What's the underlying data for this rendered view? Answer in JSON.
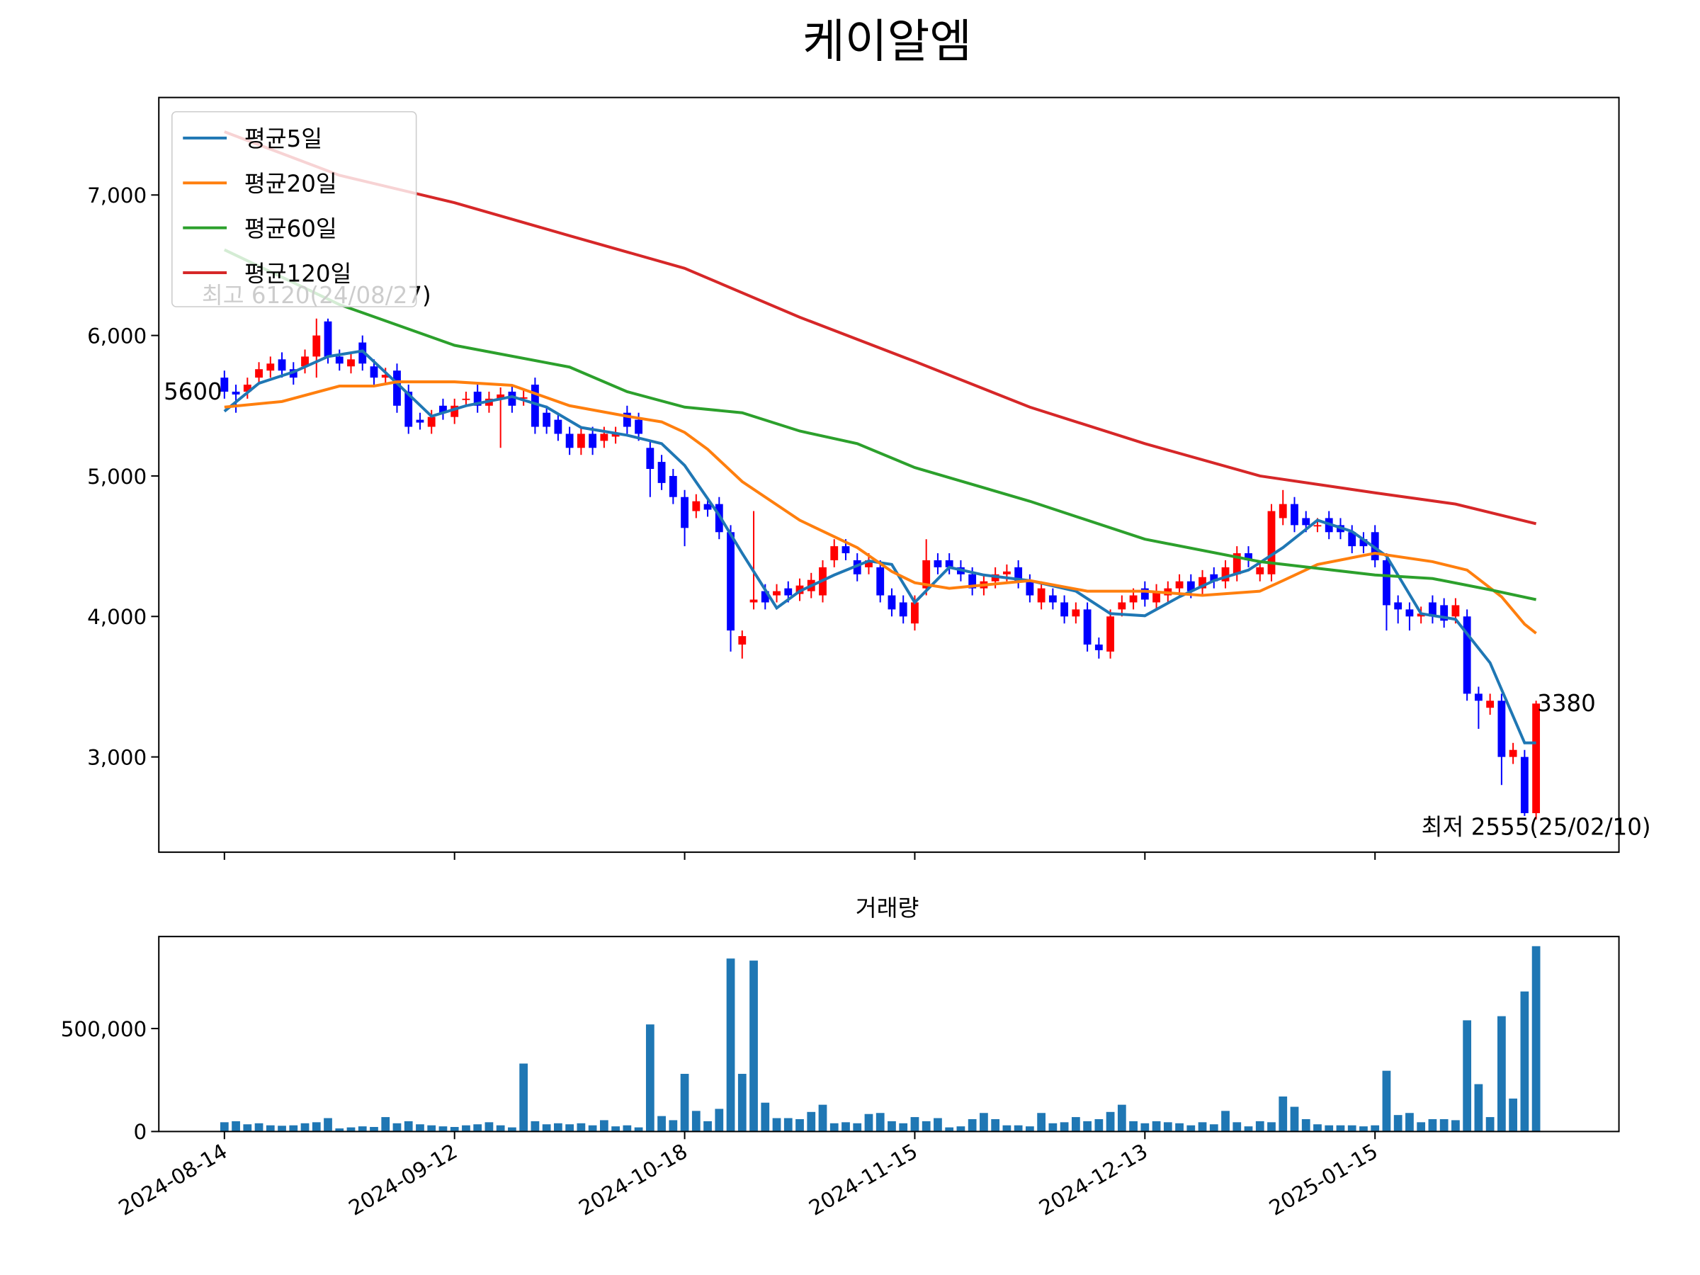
{
  "chart_data": {
    "type": "candlestick",
    "title": "케이알엠",
    "volume_title": "거래량",
    "up_color": "#ff0000",
    "down_color": "#0000ff",
    "volume_color": "#1f77b4",
    "xlim": [
      -5.7,
      121.2
    ],
    "xticks": [
      {
        "value": 0,
        "label": "2024-08-14"
      },
      {
        "value": 20,
        "label": "2024-09-12"
      },
      {
        "value": 40,
        "label": "2024-10-18"
      },
      {
        "value": 60,
        "label": "2024-11-15"
      },
      {
        "value": 80,
        "label": "2024-12-13"
      },
      {
        "value": 100,
        "label": "2025-01-15"
      }
    ],
    "ylim": [
      2322,
      7694
    ],
    "yticks": [
      {
        "value": 3000,
        "label": "3,000"
      },
      {
        "value": 4000,
        "label": "4,000"
      },
      {
        "value": 5000,
        "label": "5,000"
      },
      {
        "value": 6000,
        "label": "6,000"
      },
      {
        "value": 7000,
        "label": "7,000"
      }
    ],
    "volume_ylim": [
      0,
      946800
    ],
    "volume_yticks": [
      0,
      {
        "value": 500000,
        "label": "500,000"
      }
    ],
    "legend": "upper left",
    "candles": {
      "open": [
        5700,
        5600,
        5600,
        5700,
        5750,
        5830,
        5760,
        5780,
        5850,
        6100,
        5850,
        5780,
        5950,
        5780,
        5700,
        5750,
        5600,
        5400,
        5350,
        5500,
        5420,
        5550,
        5600,
        5500,
        5550,
        5600,
        5550,
        5650,
        5450,
        5400,
        5300,
        5200,
        5300,
        5250,
        5280,
        5450,
        5400,
        5200,
        5100,
        5000,
        4850,
        4750,
        4800,
        4800,
        4600,
        3800,
        4100,
        4180,
        4150,
        4200,
        4160,
        4180,
        4150,
        4400,
        4500,
        4400,
        4350,
        4350,
        4150,
        4100,
        3950,
        4200,
        4400,
        4400,
        4350,
        4300,
        4200,
        4250,
        4300,
        4350,
        4250,
        4100,
        4150,
        4100,
        4000,
        4050,
        3800,
        3750,
        4050,
        4100,
        4200,
        4100,
        4150,
        4200,
        4250,
        4200,
        4300,
        4250,
        4300,
        4450,
        4300,
        4300,
        4700,
        4800,
        4700,
        4650,
        4700,
        4650,
        4600,
        4550,
        4600,
        4400,
        4100,
        4050,
        4000,
        4100,
        4080,
        4000,
        4000,
        3450,
        3350,
        3400,
        3000,
        3000,
        2600
      ],
      "high": [
        5750,
        5650,
        5700,
        5810,
        5850,
        5880,
        5810,
        5900,
        6120,
        6120,
        5900,
        5880,
        6000,
        5830,
        5770,
        5800,
        5650,
        5450,
        5470,
        5550,
        5550,
        5600,
        5650,
        5600,
        5630,
        5650,
        5610,
        5700,
        5500,
        5450,
        5350,
        5350,
        5350,
        5350,
        5350,
        5500,
        5450,
        5250,
        5150,
        5050,
        4900,
        4870,
        4850,
        4850,
        4650,
        3900,
        4750,
        4230,
        4230,
        4250,
        4270,
        4310,
        4400,
        4550,
        4550,
        4450,
        4450,
        4400,
        4200,
        4150,
        4150,
        4550,
        4450,
        4450,
        4400,
        4350,
        4300,
        4350,
        4370,
        4400,
        4300,
        4250,
        4200,
        4150,
        4100,
        4100,
        3850,
        4050,
        4150,
        4200,
        4250,
        4230,
        4250,
        4300,
        4300,
        4330,
        4350,
        4400,
        4500,
        4500,
        4400,
        4800,
        4900,
        4850,
        4750,
        4700,
        4750,
        4700,
        4650,
        4600,
        4650,
        4450,
        4150,
        4100,
        4070,
        4150,
        4130,
        4130,
        4050,
        3500,
        3450,
        3450,
        3100,
        3050,
        3400
      ],
      "low": [
        5550,
        5450,
        5550,
        5650,
        5700,
        5700,
        5650,
        5730,
        5700,
        5800,
        5750,
        5730,
        5750,
        5650,
        5650,
        5450,
        5300,
        5330,
        5300,
        5400,
        5370,
        5500,
        5450,
        5450,
        5200,
        5450,
        5500,
        5300,
        5300,
        5250,
        5150,
        5150,
        5150,
        5200,
        5230,
        5300,
        5250,
        4850,
        4900,
        4800,
        4500,
        4700,
        4710,
        4550,
        3750,
        3700,
        4050,
        4050,
        4100,
        4100,
        4110,
        4130,
        4100,
        4350,
        4400,
        4250,
        4300,
        4100,
        4000,
        3950,
        3900,
        4150,
        4300,
        4300,
        4250,
        4150,
        4150,
        4200,
        4250,
        4200,
        4100,
        4050,
        4050,
        3950,
        3950,
        3750,
        3700,
        3700,
        4000,
        4050,
        4070,
        4050,
        4100,
        4150,
        4130,
        4150,
        4200,
        4200,
        4250,
        4350,
        4250,
        4250,
        4650,
        4600,
        4600,
        4600,
        4550,
        4550,
        4450,
        4450,
        4350,
        3900,
        3950,
        3900,
        3950,
        3950,
        3920,
        3950,
        3400,
        3200,
        3300,
        2800,
        2950,
        2580,
        2555
      ],
      "close": [
        5600,
        5580,
        5650,
        5760,
        5800,
        5750,
        5700,
        5850,
        6000,
        5850,
        5800,
        5830,
        5800,
        5700,
        5720,
        5500,
        5350,
        5380,
        5420,
        5450,
        5500,
        5550,
        5500,
        5550,
        5580,
        5500,
        5560,
        5350,
        5350,
        5300,
        5200,
        5300,
        5200,
        5300,
        5300,
        5350,
        5300,
        5050,
        4950,
        4850,
        4630,
        4820,
        4760,
        4600,
        3900,
        3860,
        4120,
        4100,
        4180,
        4150,
        4220,
        4260,
        4350,
        4500,
        4450,
        4300,
        4400,
        4150,
        4050,
        4000,
        4100,
        4400,
        4350,
        4350,
        4300,
        4200,
        4250,
        4300,
        4320,
        4250,
        4150,
        4200,
        4100,
        4000,
        4050,
        3800,
        3760,
        4000,
        4100,
        4150,
        4120,
        4180,
        4200,
        4250,
        4180,
        4280,
        4250,
        4350,
        4450,
        4400,
        4350,
        4750,
        4800,
        4650,
        4650,
        4650,
        4600,
        4600,
        4500,
        4500,
        4400,
        4080,
        4050,
        4000,
        4020,
        4000,
        3970,
        4080,
        3450,
        3400,
        3400,
        3000,
        3050,
        2600,
        3380
      ],
      "volume": [
        45000,
        50000,
        35000,
        40000,
        30000,
        28000,
        30000,
        40000,
        45000,
        65000,
        15000,
        20000,
        25000,
        22000,
        70000,
        40000,
        50000,
        35000,
        30000,
        25000,
        22000,
        30000,
        35000,
        45000,
        30000,
        20000,
        330000,
        50000,
        35000,
        40000,
        35000,
        40000,
        30000,
        55000,
        25000,
        30000,
        20000,
        520000,
        75000,
        55000,
        280000,
        100000,
        50000,
        110000,
        840000,
        280000,
        830000,
        140000,
        65000,
        65000,
        60000,
        95000,
        130000,
        40000,
        45000,
        40000,
        85000,
        90000,
        50000,
        40000,
        70000,
        50000,
        65000,
        20000,
        25000,
        60000,
        90000,
        60000,
        30000,
        30000,
        25000,
        90000,
        40000,
        45000,
        70000,
        50000,
        60000,
        95000,
        130000,
        50000,
        40000,
        50000,
        45000,
        40000,
        30000,
        45000,
        35000,
        100000,
        45000,
        25000,
        50000,
        45000,
        170000,
        120000,
        60000,
        35000,
        30000,
        30000,
        30000,
        25000,
        30000,
        295000,
        80000,
        90000,
        45000,
        60000,
        60000,
        55000,
        540000,
        230000,
        70000,
        560000,
        160000,
        680000,
        900000
      ]
    },
    "series": [
      {
        "name": "평균5일",
        "color": "#1f77b4",
        "x": [
          0,
          3,
          6,
          9,
          12,
          15,
          18,
          21,
          25,
          28,
          31,
          35,
          38,
          40,
          43,
          45,
          48,
          50,
          53,
          56,
          58,
          60,
          63,
          66,
          70,
          74,
          77,
          80,
          83,
          86,
          89,
          92,
          95,
          98,
          101,
          104,
          107,
          110,
          113,
          114
        ],
        "values": [
          5460,
          5660,
          5740,
          5850,
          5890,
          5660,
          5425,
          5500,
          5565,
          5490,
          5345,
          5290,
          5230,
          5075,
          4720,
          4450,
          4060,
          4180,
          4295,
          4395,
          4370,
          4100,
          4350,
          4295,
          4255,
          4180,
          4020,
          4005,
          4140,
          4255,
          4330,
          4490,
          4685,
          4605,
          4430,
          4020,
          3980,
          3670,
          3100,
          3100
        ]
      },
      {
        "name": "평균20일",
        "color": "#ff7f0e",
        "x": [
          0,
          5,
          10,
          13,
          15,
          20,
          25,
          30,
          35,
          38,
          40,
          42,
          45,
          50,
          55,
          58,
          60,
          63,
          70,
          75,
          80,
          85,
          90,
          92,
          95,
          100,
          105,
          108,
          111,
          113,
          114
        ],
        "values": [
          5490,
          5530,
          5640,
          5640,
          5670,
          5670,
          5645,
          5500,
          5425,
          5385,
          5310,
          5190,
          4960,
          4685,
          4490,
          4320,
          4240,
          4200,
          4255,
          4180,
          4180,
          4150,
          4180,
          4255,
          4370,
          4450,
          4390,
          4330,
          4140,
          3945,
          3880
        ]
      },
      {
        "name": "평균60일",
        "color": "#2ca02c",
        "x": [
          0,
          10,
          20,
          30,
          35,
          40,
          45,
          50,
          55,
          60,
          70,
          80,
          90,
          100,
          105,
          110,
          114
        ],
        "values": [
          6610,
          6220,
          5930,
          5775,
          5600,
          5490,
          5450,
          5320,
          5230,
          5060,
          4820,
          4550,
          4390,
          4295,
          4270,
          4190,
          4120
        ]
      },
      {
        "name": "평균120일",
        "color": "#d62728",
        "x": [
          0,
          10,
          20,
          30,
          40,
          50,
          60,
          70,
          80,
          90,
          100,
          107,
          114
        ],
        "values": [
          7450,
          7140,
          6945,
          6710,
          6478,
          6130,
          5815,
          5490,
          5230,
          5000,
          4880,
          4800,
          4660
        ]
      }
    ],
    "annotations": {
      "high": "최고 6120(24/08/27)",
      "low": "최저 2555(25/02/10)"
    }
  }
}
